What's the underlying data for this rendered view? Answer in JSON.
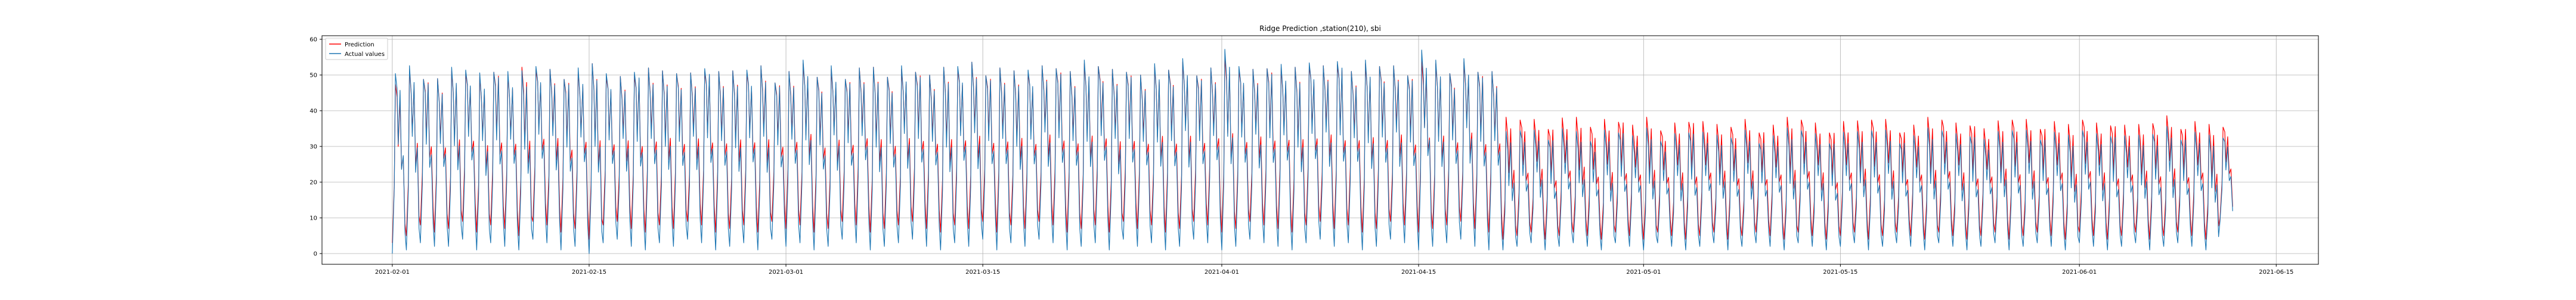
{
  "chart_data": {
    "type": "line",
    "title": "Ridge Prediction ,station(210), sbi",
    "xlabel": "",
    "ylabel": "",
    "x_range": [
      "2021-01-27",
      "2021-06-18"
    ],
    "x_ticks": [
      "2021-02-01",
      "2021-02-15",
      "2021-03-01",
      "2021-03-15",
      "2021-04-01",
      "2021-04-15",
      "2021-05-01",
      "2021-05-15",
      "2021-06-01",
      "2021-06-15"
    ],
    "ylim": [
      -3,
      61
    ],
    "y_ticks": [
      0,
      10,
      20,
      30,
      40,
      50,
      60
    ],
    "grid": true,
    "legend_placement": "top-left",
    "series": [
      {
        "name": "Prediction",
        "color": "#ff0000",
        "x": [
          "2021-02-01",
          "2021-02-02",
          "2021-02-03",
          "2021-02-04",
          "2021-02-05",
          "2021-02-06",
          "2021-02-07",
          "2021-02-08",
          "2021-02-09",
          "2021-02-10",
          "2021-02-11",
          "2021-02-12",
          "2021-02-13",
          "2021-02-14",
          "2021-02-15",
          "2021-02-16",
          "2021-02-17",
          "2021-02-18",
          "2021-02-19",
          "2021-02-20",
          "2021-02-21",
          "2021-02-22",
          "2021-02-23",
          "2021-02-24",
          "2021-02-25",
          "2021-02-26",
          "2021-02-27",
          "2021-02-28",
          "2021-03-01",
          "2021-03-02",
          "2021-03-03",
          "2021-03-04",
          "2021-03-05",
          "2021-03-06",
          "2021-03-07",
          "2021-03-08",
          "2021-03-09",
          "2021-03-10",
          "2021-03-11",
          "2021-03-12",
          "2021-03-13",
          "2021-03-14",
          "2021-03-15",
          "2021-03-16",
          "2021-03-17",
          "2021-03-18",
          "2021-03-19",
          "2021-03-20",
          "2021-03-21",
          "2021-03-22",
          "2021-03-23",
          "2021-03-24",
          "2021-03-25",
          "2021-03-26",
          "2021-03-27",
          "2021-03-28",
          "2021-03-29",
          "2021-03-30",
          "2021-03-31",
          "2021-04-01",
          "2021-04-02",
          "2021-04-03",
          "2021-04-04",
          "2021-04-05",
          "2021-04-06",
          "2021-04-07",
          "2021-04-08",
          "2021-04-09",
          "2021-04-10",
          "2021-04-11",
          "2021-04-12",
          "2021-04-13",
          "2021-04-14",
          "2021-04-15",
          "2021-04-16",
          "2021-04-17",
          "2021-04-18",
          "2021-04-19",
          "2021-04-20",
          "2021-04-21",
          "2021-04-22",
          "2021-04-23",
          "2021-04-24",
          "2021-04-25",
          "2021-04-26",
          "2021-04-27",
          "2021-04-28",
          "2021-04-29",
          "2021-04-30",
          "2021-05-01",
          "2021-05-02",
          "2021-05-03",
          "2021-05-04",
          "2021-05-05",
          "2021-05-06",
          "2021-05-07",
          "2021-05-08",
          "2021-05-09",
          "2021-05-10",
          "2021-05-11",
          "2021-05-12",
          "2021-05-13",
          "2021-05-14",
          "2021-05-15",
          "2021-05-16",
          "2021-05-17",
          "2021-05-18",
          "2021-05-19",
          "2021-05-20",
          "2021-05-21",
          "2021-05-22",
          "2021-05-23",
          "2021-05-24",
          "2021-05-25",
          "2021-05-26",
          "2021-05-27",
          "2021-05-28",
          "2021-05-29",
          "2021-05-30",
          "2021-05-31",
          "2021-06-01",
          "2021-06-02",
          "2021-06-03",
          "2021-06-04",
          "2021-06-05",
          "2021-06-06",
          "2021-06-07",
          "2021-06-08",
          "2021-06-09",
          "2021-06-10",
          "2021-06-11"
        ],
        "high": [
          48,
          51,
          50,
          49,
          50,
          51,
          49,
          52,
          50,
          51,
          52,
          51,
          50,
          51,
          52,
          50,
          49,
          51,
          52,
          50,
          51,
          50,
          52,
          51,
          50,
          51,
          52,
          49,
          51,
          52,
          50,
          51,
          50,
          52,
          51,
          50,
          51,
          52,
          50,
          51,
          52,
          53,
          51,
          52,
          50,
          51,
          52,
          53,
          51,
          52,
          53,
          51,
          52,
          50,
          51,
          52,
          53,
          51,
          52,
          54,
          52,
          51,
          53,
          52,
          51,
          53,
          52,
          54,
          51,
          52,
          53,
          52,
          51,
          54,
          52,
          51,
          53,
          52,
          51,
          37,
          38,
          37,
          36,
          38,
          37,
          36,
          37,
          38,
          36,
          37,
          35,
          36,
          38,
          37,
          35,
          36,
          37,
          35,
          36,
          37,
          38,
          36,
          35,
          37,
          36,
          38,
          37,
          35,
          36,
          37,
          38,
          36,
          37,
          35,
          36,
          38,
          37,
          36,
          37,
          35,
          38,
          36,
          37,
          36,
          35,
          37,
          38,
          36,
          37,
          35,
          36
        ],
        "low": [
          3,
          5,
          8,
          6,
          7,
          9,
          6,
          8,
          7,
          5,
          9,
          8,
          6,
          7,
          4,
          8,
          9,
          7,
          6,
          8,
          7,
          9,
          8,
          6,
          7,
          8,
          6,
          9,
          7,
          8,
          6,
          7,
          9,
          8,
          6,
          7,
          8,
          9,
          7,
          6,
          8,
          7,
          9,
          6,
          8,
          7,
          9,
          8,
          6,
          7,
          8,
          6,
          9,
          7,
          8,
          6,
          7,
          9,
          8,
          6,
          7,
          9,
          8,
          7,
          6,
          8,
          9,
          7,
          8,
          6,
          7,
          9,
          8,
          6,
          7,
          8,
          9,
          7,
          6,
          4,
          5,
          6,
          4,
          5,
          6,
          5,
          4,
          6,
          5,
          4,
          6,
          5,
          4,
          5,
          6,
          4,
          5,
          6,
          5,
          4,
          6,
          5,
          4,
          5,
          6,
          4,
          5,
          6,
          5,
          4,
          6,
          5,
          4,
          5,
          6,
          4,
          5,
          6,
          5,
          4,
          6,
          5,
          4,
          5,
          6,
          4,
          5,
          6,
          5,
          4,
          10
        ]
      },
      {
        "name": "Actual values",
        "color": "#1f77b4",
        "x": [
          "2021-02-01",
          "2021-02-02",
          "2021-02-03",
          "2021-02-04",
          "2021-02-05",
          "2021-02-06",
          "2021-02-07",
          "2021-02-08",
          "2021-02-09",
          "2021-02-10",
          "2021-02-11",
          "2021-02-12",
          "2021-02-13",
          "2021-02-14",
          "2021-02-15",
          "2021-02-16",
          "2021-02-17",
          "2021-02-18",
          "2021-02-19",
          "2021-02-20",
          "2021-02-21",
          "2021-02-22",
          "2021-02-23",
          "2021-02-24",
          "2021-02-25",
          "2021-02-26",
          "2021-02-27",
          "2021-02-28",
          "2021-03-01",
          "2021-03-02",
          "2021-03-03",
          "2021-03-04",
          "2021-03-05",
          "2021-03-06",
          "2021-03-07",
          "2021-03-08",
          "2021-03-09",
          "2021-03-10",
          "2021-03-11",
          "2021-03-12",
          "2021-03-13",
          "2021-03-14",
          "2021-03-15",
          "2021-03-16",
          "2021-03-17",
          "2021-03-18",
          "2021-03-19",
          "2021-03-20",
          "2021-03-21",
          "2021-03-22",
          "2021-03-23",
          "2021-03-24",
          "2021-03-25",
          "2021-03-26",
          "2021-03-27",
          "2021-03-28",
          "2021-03-29",
          "2021-03-30",
          "2021-03-31",
          "2021-04-01",
          "2021-04-02",
          "2021-04-03",
          "2021-04-04",
          "2021-04-05",
          "2021-04-06",
          "2021-04-07",
          "2021-04-08",
          "2021-04-09",
          "2021-04-10",
          "2021-04-11",
          "2021-04-12",
          "2021-04-13",
          "2021-04-14",
          "2021-04-15",
          "2021-04-16",
          "2021-04-17",
          "2021-04-18",
          "2021-04-19",
          "2021-04-20",
          "2021-04-21",
          "2021-04-22",
          "2021-04-23",
          "2021-04-24",
          "2021-04-25",
          "2021-04-26",
          "2021-04-27",
          "2021-04-28",
          "2021-04-29",
          "2021-04-30",
          "2021-05-01",
          "2021-05-02",
          "2021-05-03",
          "2021-05-04",
          "2021-05-05",
          "2021-05-06",
          "2021-05-07",
          "2021-05-08",
          "2021-05-09",
          "2021-05-10",
          "2021-05-11",
          "2021-05-12",
          "2021-05-13",
          "2021-05-14",
          "2021-05-15",
          "2021-05-16",
          "2021-05-17",
          "2021-05-18",
          "2021-05-19",
          "2021-05-20",
          "2021-05-21",
          "2021-05-22",
          "2021-05-23",
          "2021-05-24",
          "2021-05-25",
          "2021-05-26",
          "2021-05-27",
          "2021-05-28",
          "2021-05-29",
          "2021-05-30",
          "2021-05-31",
          "2021-06-01",
          "2021-06-02",
          "2021-06-03",
          "2021-06-04",
          "2021-06-05",
          "2021-06-06",
          "2021-06-07",
          "2021-06-08",
          "2021-06-09",
          "2021-06-10",
          "2021-06-11"
        ],
        "high": [
          51,
          52,
          50,
          49,
          51,
          52,
          50,
          52,
          51,
          50,
          53,
          51,
          50,
          52,
          52,
          51,
          49,
          52,
          52,
          50,
          51,
          50,
          53,
          51,
          50,
          52,
          52,
          49,
          51,
          53,
          50,
          52,
          50,
          52,
          51,
          50,
          52,
          52,
          50,
          51,
          53,
          53,
          51,
          52,
          50,
          52,
          52,
          53,
          51,
          53,
          53,
          51,
          52,
          50,
          52,
          52,
          54,
          51,
          52,
          56,
          53,
          51,
          53,
          53,
          51,
          54,
          52,
          55,
          51,
          53,
          53,
          52,
          51,
          57,
          53,
          51,
          54,
          52,
          51,
          33,
          35,
          34,
          33,
          35,
          33,
          32,
          34,
          35,
          33,
          34,
          32,
          33,
          35,
          34,
          32,
          33,
          34,
          32,
          33,
          34,
          35,
          33,
          32,
          34,
          33,
          35,
          34,
          32,
          33,
          34,
          35,
          33,
          34,
          32,
          33,
          35,
          34,
          33,
          34,
          32,
          35,
          33,
          34,
          33,
          32,
          34,
          35,
          33,
          34,
          32,
          33
        ],
        "low": [
          0,
          1,
          3,
          2,
          2,
          4,
          1,
          3,
          2,
          1,
          4,
          3,
          1,
          2,
          0,
          3,
          4,
          2,
          1,
          3,
          2,
          4,
          3,
          1,
          2,
          3,
          1,
          4,
          2,
          3,
          1,
          2,
          4,
          3,
          1,
          2,
          3,
          4,
          2,
          1,
          3,
          2,
          4,
          1,
          3,
          2,
          4,
          3,
          1,
          2,
          3,
          1,
          4,
          2,
          3,
          1,
          2,
          4,
          3,
          1,
          2,
          4,
          3,
          2,
          1,
          3,
          4,
          2,
          3,
          1,
          2,
          4,
          3,
          1,
          2,
          3,
          4,
          2,
          1,
          1,
          2,
          3,
          1,
          2,
          3,
          2,
          1,
          3,
          2,
          1,
          3,
          2,
          1,
          2,
          3,
          1,
          2,
          3,
          2,
          1,
          3,
          2,
          1,
          2,
          3,
          1,
          2,
          3,
          2,
          1,
          3,
          2,
          1,
          2,
          3,
          1,
          2,
          3,
          2,
          1,
          3,
          2,
          1,
          2,
          3,
          1,
          2,
          3,
          2,
          1,
          9
        ]
      }
    ]
  }
}
